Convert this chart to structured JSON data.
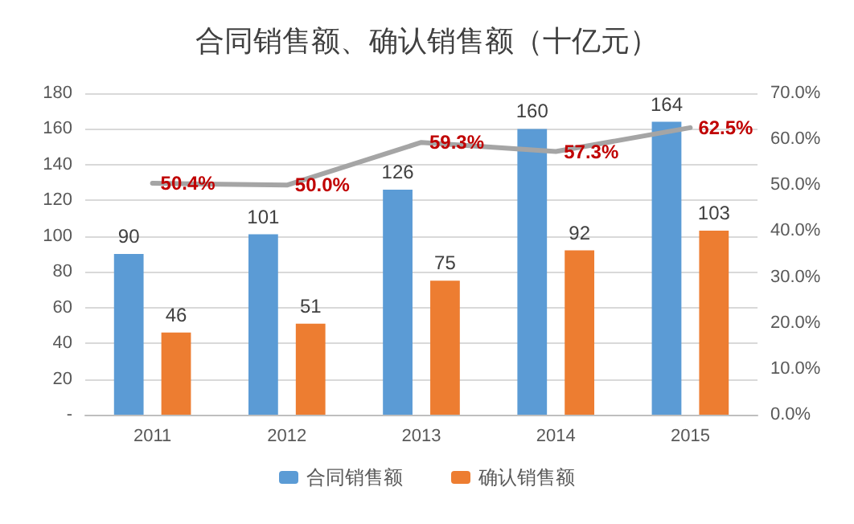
{
  "chart_data": {
    "type": "bar",
    "title": "合同销售额、确认销售额（十亿元）",
    "categories": [
      "2011",
      "2012",
      "2013",
      "2014",
      "2015"
    ],
    "series": [
      {
        "name": "合同销售额",
        "color": "#5b9bd5",
        "values": [
          90,
          101,
          126,
          160,
          164
        ],
        "value_labels": [
          "90",
          "101",
          "126",
          "160",
          "164"
        ]
      },
      {
        "name": "确认销售额",
        "color": "#ed7d31",
        "values": [
          46,
          51,
          75,
          92,
          103
        ],
        "value_labels": [
          "46",
          "51",
          "75",
          "92",
          "103"
        ]
      },
      {
        "type": "line",
        "axis": "y2",
        "color": "#a5a5a5",
        "values": [
          50.4,
          50.0,
          59.3,
          57.3,
          62.5
        ],
        "value_labels": [
          "50.4%",
          "50.0%",
          "59.3%",
          "57.3%",
          "62.5%"
        ]
      }
    ],
    "ylim": [
      0,
      180
    ],
    "yticks": [
      {
        "value": 0,
        "label": "-"
      },
      20,
      40,
      60,
      80,
      100,
      120,
      140,
      160,
      180
    ],
    "y2lim": [
      0,
      70
    ],
    "y2ticks": [
      {
        "value": 0,
        "label": "0.0%"
      },
      {
        "value": 10,
        "label": "10.0%"
      },
      {
        "value": 20,
        "label": "20.0%"
      },
      {
        "value": 30,
        "label": "30.0%"
      },
      {
        "value": 40,
        "label": "40.0%"
      },
      {
        "value": 50,
        "label": "50.0%"
      },
      {
        "value": 60,
        "label": "60.0%"
      },
      {
        "value": 70,
        "label": "70.0%"
      }
    ],
    "grid": "y",
    "legend": "bottom",
    "marker": "none",
    "line_style": "solid"
  }
}
